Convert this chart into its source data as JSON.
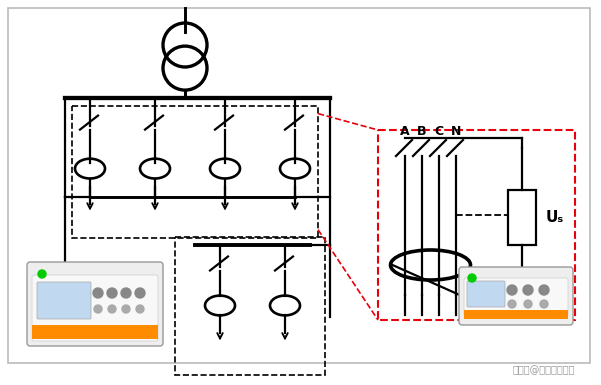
{
  "bg_color": "#ffffff",
  "lc": "#000000",
  "red_dashed": "#e8000a",
  "lw": 1.6,
  "watermark": "搜狐号@安科瑞张田田",
  "label_ABCN": [
    "A",
    "B",
    "C",
    "N"
  ],
  "Us_label": "Uₛ"
}
